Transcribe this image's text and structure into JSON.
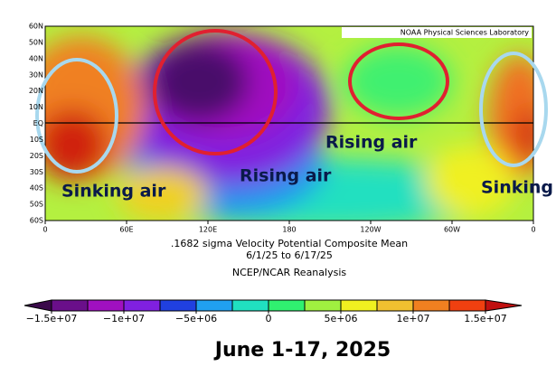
{
  "map": {
    "lat_labels": [
      "60N",
      "50N",
      "40N",
      "30N",
      "20N",
      "10N",
      "EQ",
      "10S",
      "20S",
      "30S",
      "40S",
      "50S",
      "60S"
    ],
    "lon_labels": [
      "0",
      "60E",
      "120E",
      "180",
      "120W",
      "60W",
      "0"
    ],
    "credit": "NOAA Physical Sciences Laboratory",
    "annotations": [
      "Sinking air",
      "Rising air",
      "Rising air",
      "Sinking air"
    ]
  },
  "caption": {
    "line1": ".1682 sigma Velocity Potential  Composite Mean",
    "line2": "6/1/25   to 6/17/25",
    "line3": "NCEP/NCAR Reanalysis"
  },
  "colorbar": {
    "ticks": [
      {
        "value": -15000000,
        "label": "−1.5e+07"
      },
      {
        "value": -10000000,
        "label": "−1e+07"
      },
      {
        "value": -5000000,
        "label": "−5e+06"
      },
      0,
      {
        "value": 5000000,
        "label": "5e+06"
      },
      {
        "value": 10000000,
        "label": "1e+07"
      },
      {
        "value": 15000000,
        "label": "1.5e+07"
      }
    ],
    "colors": [
      "#3a0a4a",
      "#6a0f8a",
      "#a010c0",
      "#8020e0",
      "#2040e0",
      "#20a0f0",
      "#20e0c0",
      "#30f070",
      "#a0f040",
      "#f0f020",
      "#f0c030",
      "#f08020",
      "#f04010",
      "#c01010"
    ]
  },
  "title": "June 1-17, 2025"
}
